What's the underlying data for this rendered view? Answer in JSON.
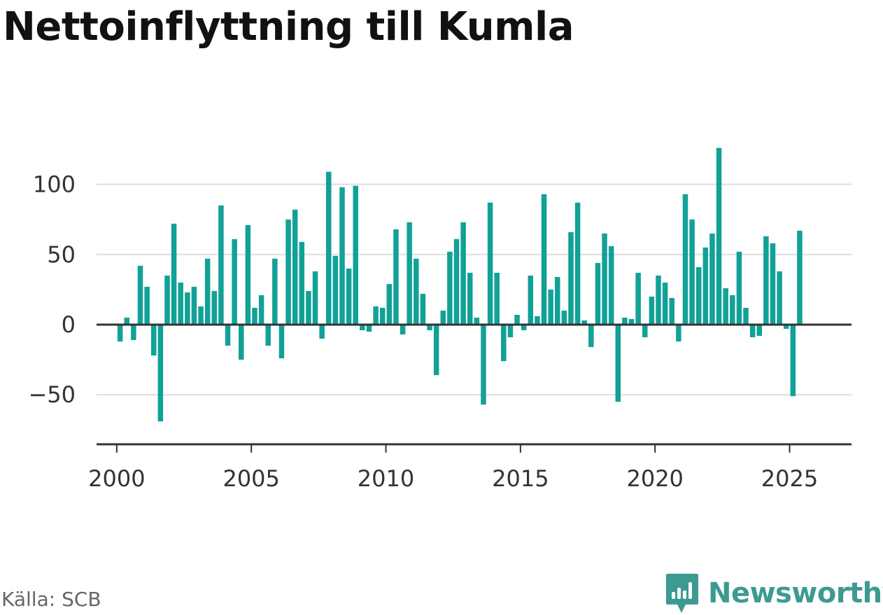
{
  "title": "Nettoinflyttning till Kumla",
  "source": "Källa: SCB",
  "brand": {
    "name": "Newsworthy",
    "color": "#3d9a92",
    "icon": "bar-chart-speech-bubble-icon"
  },
  "colors": {
    "bar": "#11a197",
    "grid": "#dddddd",
    "axis": "#333333"
  },
  "chart_data": {
    "type": "bar",
    "title": "Nettoinflyttning till Kumla",
    "xlabel": "",
    "ylabel": "",
    "ylim": [
      -80,
      130
    ],
    "xlim": [
      1999.25,
      2027.3
    ],
    "yticks": [
      -50,
      0,
      50,
      100
    ],
    "ytick_labels": [
      "−50",
      "0",
      "50",
      "100"
    ],
    "xticks": [
      2000,
      2005,
      2010,
      2015,
      2020,
      2025
    ],
    "xtick_labels": [
      "2000",
      "2005",
      "2010",
      "2015",
      "2020",
      "2025"
    ],
    "grid": true,
    "legend": "none",
    "frequency": "quarterly",
    "start": "2000-Q1",
    "end": "2025-Q2",
    "values": [
      -12,
      5,
      -11,
      42,
      27,
      -22,
      -69,
      35,
      72,
      30,
      23,
      27,
      13,
      47,
      24,
      85,
      -15,
      61,
      -25,
      71,
      12,
      21,
      -15,
      47,
      -24,
      75,
      82,
      59,
      24,
      38,
      -10,
      109,
      49,
      98,
      40,
      99,
      -4,
      -5,
      13,
      12,
      29,
      68,
      -7,
      73,
      47,
      22,
      -4,
      -36,
      10,
      52,
      61,
      73,
      37,
      5,
      -57,
      87,
      37,
      -26,
      -9,
      7,
      -4,
      35,
      6,
      93,
      25,
      34,
      10,
      66,
      87,
      3,
      -16,
      44,
      65,
      56,
      -55,
      5,
      4,
      37,
      -9,
      20,
      35,
      30,
      19,
      -12,
      93,
      75,
      41,
      55,
      65,
      126,
      26,
      21,
      52,
      12,
      -9,
      -8,
      63,
      58,
      38,
      -3,
      -51,
      67
    ]
  }
}
